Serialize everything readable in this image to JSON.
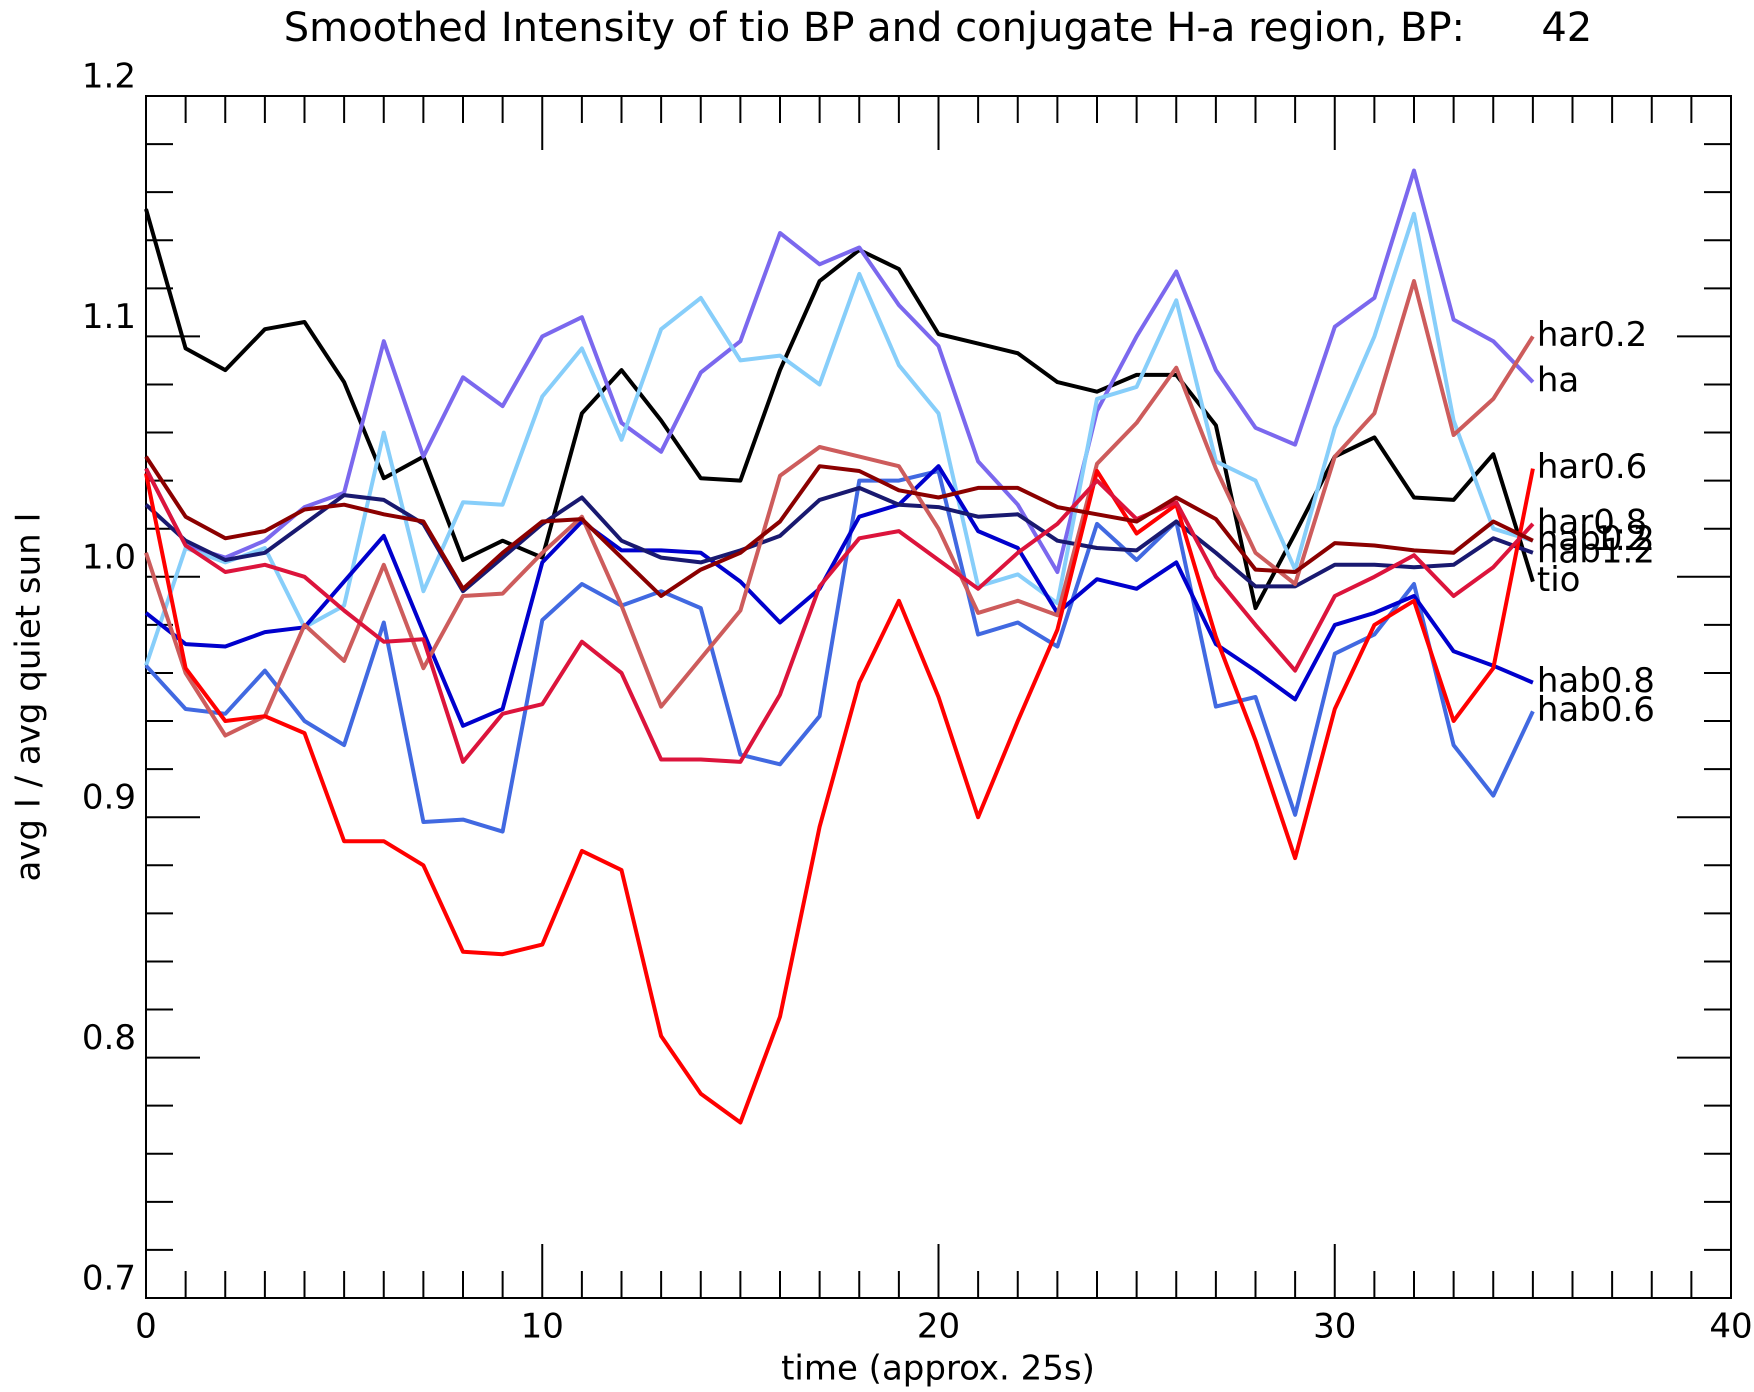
{
  "chart_data": {
    "type": "line",
    "title": "Smoothed Intensity of tio BP and conjugate H-a region, BP:      42",
    "xlabel": "time (approx. 25s)",
    "ylabel": "avg I / avg quiet sun I",
    "x": [
      0,
      1,
      2,
      3,
      4,
      5,
      6,
      7,
      8,
      9,
      10,
      11,
      12,
      13,
      14,
      15,
      16,
      17,
      18,
      19,
      20,
      21,
      22,
      23,
      24,
      25,
      26,
      27,
      28,
      29,
      30,
      31,
      32,
      33,
      34,
      35
    ],
    "xlim": [
      0,
      40
    ],
    "xticks": [
      0,
      10,
      20,
      30,
      40
    ],
    "xminorticks": [
      1,
      2,
      3,
      4,
      5,
      6,
      7,
      8,
      9,
      11,
      12,
      13,
      14,
      15,
      16,
      17,
      18,
      19,
      21,
      22,
      23,
      24,
      25,
      26,
      27,
      28,
      29,
      31,
      32,
      33,
      34,
      35,
      36,
      37,
      38,
      39
    ],
    "ylim": [
      0.7,
      1.2
    ],
    "yticks": [
      0.7,
      0.8,
      0.9,
      {
        "value": 1,
        "label": "1.0"
      },
      1.1,
      1.2
    ],
    "yminorticks": [
      0.72,
      0.74,
      0.76,
      0.78,
      0.82,
      0.84,
      0.86,
      0.88,
      0.92,
      0.94,
      0.96,
      0.98,
      1.02,
      1.04,
      1.06,
      1.08,
      1.12,
      1.14,
      1.16,
      1.18
    ],
    "series": [
      {
        "name": "tio",
        "color": "#000000",
        "values": [
          1.153,
          1.095,
          1.086,
          1.103,
          1.106,
          1.081,
          1.041,
          1.05,
          1.007,
          1.015,
          1.008,
          1.068,
          1.086,
          1.065,
          1.041,
          1.04,
          1.086,
          1.123,
          1.136,
          1.128,
          1.101,
          1.097,
          1.093,
          1.081,
          1.077,
          1.084,
          1.084,
          1.063,
          0.987,
          1.018,
          1.05,
          1.058,
          1.033,
          1.032,
          1.051,
          0.998
        ]
      },
      {
        "name": "ha",
        "color": "#7b68ee",
        "values": [
          1.045,
          1.013,
          1.008,
          1.015,
          1.029,
          1.035,
          1.098,
          1.05,
          1.083,
          1.071,
          1.1,
          1.108,
          1.064,
          1.052,
          1.085,
          1.098,
          1.143,
          1.13,
          1.137,
          1.113,
          1.096,
          1.048,
          1.03,
          1.002,
          1.069,
          1.1,
          1.127,
          1.086,
          1.062,
          1.055,
          1.104,
          1.116,
          1.169,
          1.107,
          1.098,
          1.081
        ]
      },
      {
        "name": "hab0.2",
        "color": "#87cefa",
        "values": [
          0.963,
          1.012,
          1.006,
          1.012,
          0.979,
          0.988,
          1.06,
          0.994,
          1.031,
          1.03,
          1.075,
          1.095,
          1.057,
          1.103,
          1.116,
          1.09,
          1.092,
          1.08,
          1.126,
          1.088,
          1.068,
          0.996,
          1.001,
          0.989,
          1.074,
          1.079,
          1.115,
          1.048,
          1.04,
          1.003,
          1.062,
          1.1,
          1.151,
          1.065,
          1.02,
          1.015
        ]
      },
      {
        "name": "hab0.6",
        "color": "#4169e1",
        "values": [
          0.963,
          0.945,
          0.943,
          0.961,
          0.94,
          0.93,
          0.981,
          0.898,
          0.899,
          0.894,
          0.982,
          0.997,
          0.988,
          0.994,
          0.987,
          0.926,
          0.922,
          0.942,
          1.04,
          1.04,
          1.044,
          0.976,
          0.981,
          0.971,
          1.022,
          1.007,
          1.023,
          0.946,
          0.95,
          0.901,
          0.968,
          0.976,
          0.997,
          0.93,
          0.909,
          0.944
        ]
      },
      {
        "name": "hab0.8",
        "color": "#0000cd",
        "values": [
          0.985,
          0.972,
          0.971,
          0.977,
          0.979,
          0.998,
          1.017,
          0.977,
          0.938,
          0.945,
          1.006,
          1.023,
          1.011,
          1.011,
          1.01,
          0.998,
          0.981,
          0.995,
          1.025,
          1.03,
          1.046,
          1.019,
          1.012,
          0.985,
          0.999,
          0.995,
          1.006,
          0.972,
          0.961,
          0.949,
          0.98,
          0.985,
          0.992,
          0.969,
          0.963,
          0.956
        ]
      },
      {
        "name": "hab1.2",
        "color": "#191970",
        "values": [
          1.03,
          1.015,
          1.007,
          1.01,
          1.022,
          1.034,
          1.032,
          1.022,
          0.994,
          1.008,
          1.022,
          1.033,
          1.015,
          1.008,
          1.006,
          1.011,
          1.017,
          1.032,
          1.037,
          1.03,
          1.029,
          1.025,
          1.026,
          1.015,
          1.012,
          1.011,
          1.023,
          1.01,
          0.996,
          0.996,
          1.005,
          1.005,
          1.004,
          1.005,
          1.016,
          1.01
        ]
      },
      {
        "name": "har0.2",
        "color": "#cd5c5c",
        "values": [
          1.01,
          0.96,
          0.934,
          0.942,
          0.98,
          0.965,
          1.005,
          0.962,
          0.992,
          0.993,
          1.01,
          1.025,
          0.988,
          0.946,
          0.966,
          0.986,
          1.042,
          1.054,
          1.05,
          1.046,
          1.02,
          0.985,
          0.99,
          0.984,
          1.047,
          1.064,
          1.087,
          1.045,
          1.01,
          0.997,
          1.05,
          1.068,
          1.123,
          1.059,
          1.074,
          1.1
        ]
      },
      {
        "name": "har0.6",
        "color": "#ff0000",
        "values": [
          1.043,
          0.962,
          0.94,
          0.942,
          0.935,
          0.89,
          0.89,
          0.88,
          0.844,
          0.843,
          0.847,
          0.886,
          0.878,
          0.809,
          0.785,
          0.773,
          0.817,
          0.896,
          0.956,
          0.99,
          0.95,
          0.9,
          0.94,
          0.978,
          1.044,
          1.018,
          1.03,
          0.975,
          0.932,
          0.883,
          0.945,
          0.98,
          0.99,
          0.94,
          0.962,
          1.045
        ]
      },
      {
        "name": "har0.8",
        "color": "#dc143c",
        "values": [
          1.045,
          1.013,
          1.002,
          1.005,
          1.0,
          0.986,
          0.973,
          0.974,
          0.923,
          0.943,
          0.947,
          0.973,
          0.96,
          0.924,
          0.924,
          0.923,
          0.951,
          0.996,
          1.016,
          1.019,
          1.007,
          0.995,
          1.01,
          1.022,
          1.04,
          1.024,
          1.031,
          1.0,
          0.98,
          0.961,
          0.992,
          1.0,
          1.009,
          0.992,
          1.004,
          1.022
        ]
      },
      {
        "name": "har1.2",
        "color": "#8b0000",
        "values": [
          1.05,
          1.025,
          1.016,
          1.019,
          1.028,
          1.03,
          1.026,
          1.023,
          0.995,
          1.01,
          1.023,
          1.024,
          1.008,
          0.992,
          1.003,
          1.01,
          1.023,
          1.046,
          1.044,
          1.036,
          1.033,
          1.037,
          1.037,
          1.029,
          1.026,
          1.023,
          1.033,
          1.024,
          1.003,
          1.002,
          1.014,
          1.013,
          1.011,
          1.01,
          1.023,
          1.015
        ]
      }
    ]
  }
}
